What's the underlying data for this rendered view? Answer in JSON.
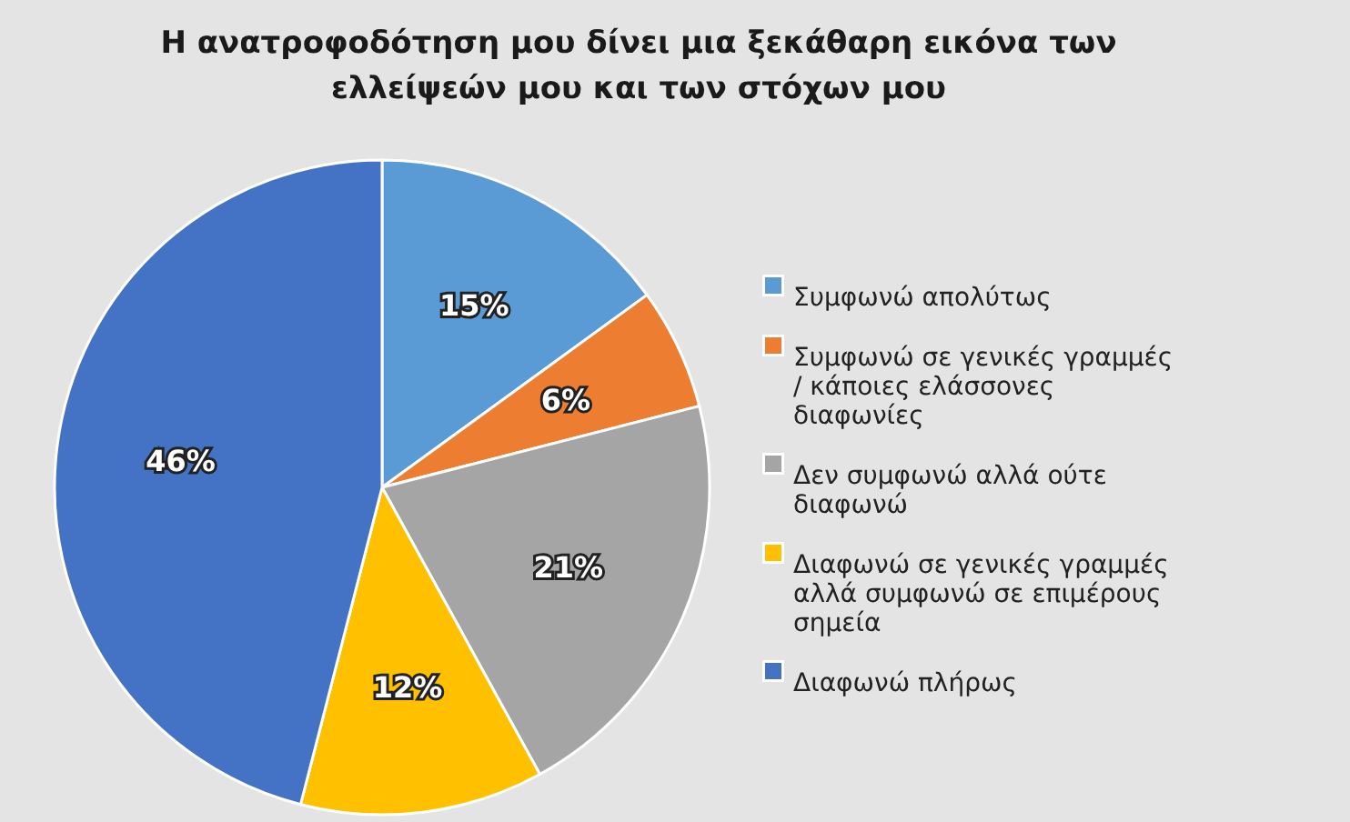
{
  "chart_data": {
    "type": "pie",
    "title": "Η ανατροφοδότηση μου δίνει μια ξεκάθαρη εικόνα των ελλείψεών  μου και των στόχων μου",
    "categories": [
      "Συμφωνώ απολύτως",
      "Συμφωνώ σε γενικές γραμμές / κάποιες ελάσσονες διαφωνίες",
      "Δεν συμφωνώ αλλά ούτε διαφωνώ",
      "Διαφωνώ σε γενικές γραμμές αλλά συμφωνώ σε επιμέρους σημεία",
      "Διαφωνώ πλήρως"
    ],
    "values": [
      15,
      6,
      21,
      12,
      46
    ],
    "colors": [
      "#5b9bd5",
      "#ed7d31",
      "#a5a5a5",
      "#ffc000",
      "#4472c4"
    ],
    "value_labels": [
      "15%",
      "6%",
      "21%",
      "12%",
      "46%"
    ],
    "legend": "right"
  }
}
